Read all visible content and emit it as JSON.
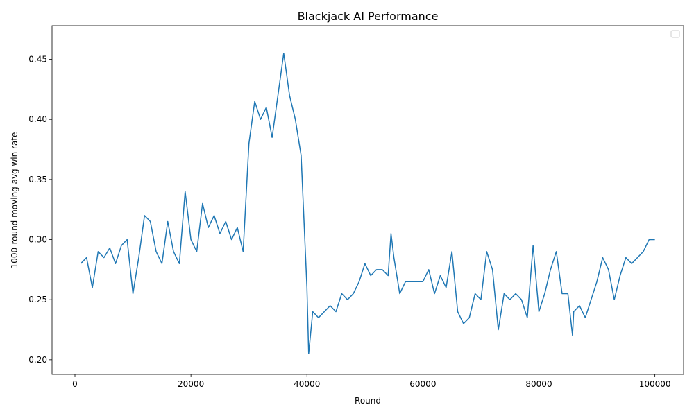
{
  "chart_data": {
    "type": "line",
    "title": "Blackjack AI Performance",
    "x_label": "Round",
    "y_label": "1000-round moving avg win rate",
    "xlim": [
      -3950,
      104950
    ],
    "ylim": [
      0.1878,
      0.478
    ],
    "xticks": [
      0,
      20000,
      40000,
      60000,
      80000,
      100000
    ],
    "yticks": [
      {
        "value": 0.2,
        "label": "0.20"
      },
      0.25,
      {
        "value": 0.3,
        "label": "0.30"
      },
      0.35,
      {
        "value": 0.4,
        "label": "0.40"
      },
      0.45
    ],
    "grid": false,
    "x": [
      1000,
      2000,
      3000,
      4000,
      5000,
      6000,
      7000,
      8000,
      9000,
      10000,
      11000,
      12000,
      13000,
      14000,
      15000,
      16000,
      17000,
      18000,
      19000,
      20000,
      21000,
      22000,
      23000,
      24000,
      25000,
      26000,
      27000,
      28000,
      29000,
      30000,
      31000,
      32000,
      33000,
      34000,
      35000,
      36000,
      37000,
      38000,
      39000,
      40000,
      40300,
      41000,
      42000,
      43000,
      44000,
      45000,
      46000,
      47000,
      48000,
      49000,
      50000,
      51000,
      52000,
      53000,
      54000,
      54500,
      55000,
      56000,
      57000,
      58000,
      59000,
      60000,
      61000,
      62000,
      63000,
      64000,
      65000,
      66000,
      67000,
      68000,
      69000,
      70000,
      71000,
      72000,
      73000,
      74000,
      75000,
      76000,
      77000,
      78000,
      79000,
      80000,
      81000,
      82000,
      83000,
      84000,
      85000,
      85800,
      86000,
      87000,
      88000,
      89000,
      90000,
      91000,
      92000,
      93000,
      94000,
      95000,
      96000,
      97000,
      98000,
      99000,
      100000
    ],
    "series": [
      {
        "color": "#1f77b4",
        "values": [
          0.28,
          0.285,
          0.26,
          0.29,
          0.285,
          0.293,
          0.28,
          0.295,
          0.3,
          0.255,
          0.285,
          0.32,
          0.315,
          0.29,
          0.28,
          0.315,
          0.29,
          0.28,
          0.34,
          0.3,
          0.29,
          0.33,
          0.31,
          0.32,
          0.305,
          0.315,
          0.3,
          0.31,
          0.29,
          0.38,
          0.415,
          0.4,
          0.41,
          0.385,
          0.42,
          0.455,
          0.42,
          0.4,
          0.37,
          0.26,
          0.205,
          0.24,
          0.235,
          0.24,
          0.245,
          0.24,
          0.255,
          0.25,
          0.255,
          0.265,
          0.28,
          0.27,
          0.275,
          0.275,
          0.27,
          0.305,
          0.285,
          0.255,
          0.265,
          0.265,
          0.265,
          0.265,
          0.275,
          0.255,
          0.27,
          0.26,
          0.29,
          0.24,
          0.23,
          0.235,
          0.255,
          0.25,
          0.29,
          0.275,
          0.225,
          0.255,
          0.25,
          0.255,
          0.25,
          0.235,
          0.295,
          0.24,
          0.255,
          0.275,
          0.29,
          0.255,
          0.255,
          0.22,
          0.24,
          0.245,
          0.235,
          0.25,
          0.265,
          0.285,
          0.275,
          0.25,
          0.27,
          0.285,
          0.28,
          0.285,
          0.29,
          0.3,
          0.3
        ]
      }
    ]
  }
}
